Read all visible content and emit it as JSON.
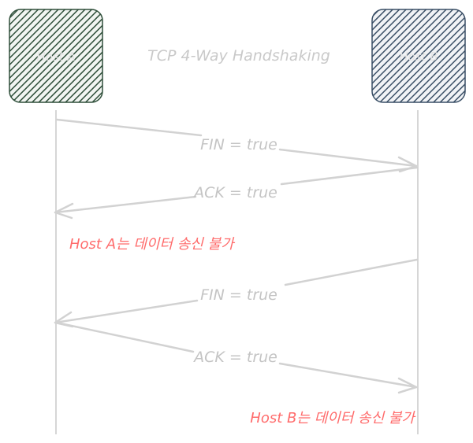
{
  "diagram": {
    "title": "TCP 4-Way Handshaking",
    "hosts": [
      {
        "label": "Host A",
        "fill": "#2f4f3a"
      },
      {
        "label": "Host B",
        "fill": "#3a4f66"
      }
    ],
    "messages": [
      {
        "label": "FIN = true",
        "from": "Host A",
        "to": "Host B"
      },
      {
        "label": "ACK = true",
        "from": "Host B",
        "to": "Host A"
      },
      {
        "label": "FIN = true",
        "from": "Host B",
        "to": "Host A"
      },
      {
        "label": "ACK = true",
        "from": "Host A",
        "to": "Host B"
      }
    ],
    "notes": [
      {
        "text": "Host A는 데이터 송신 불가",
        "near": "Host A"
      },
      {
        "text": "Host B는 데이터 송신 불가",
        "near": "Host B"
      }
    ],
    "colors": {
      "line": "#d4d4d4",
      "arrow": "#cfcfcf",
      "message_text": "#c4c4c4",
      "note_text": "#ff6b6b",
      "title_text": "#c9c9c9"
    }
  }
}
